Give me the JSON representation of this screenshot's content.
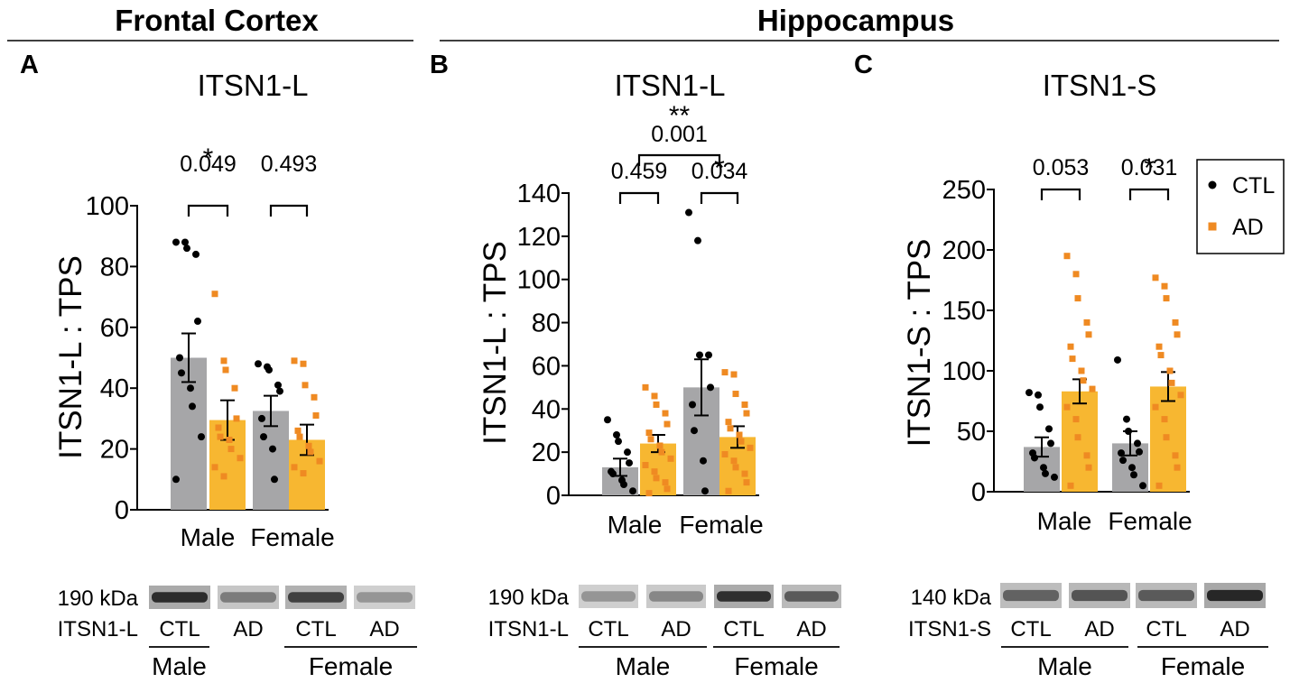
{
  "headers": {
    "frontal": "Frontal Cortex",
    "hippocampus": "Hippocampus"
  },
  "legend": {
    "ctl": "CTL",
    "ad": "AD"
  },
  "colors": {
    "ctl_bar": "#a6a6a8",
    "ad_bar": "#f7b731",
    "ctl_dot": "#000000",
    "ad_dot": "#ef8a22"
  },
  "chart_data": [
    {
      "id": "A",
      "panel_letter": "A",
      "type": "bar",
      "title": "ITSN1-L",
      "ylabel": "ITSN1-L : TPS",
      "ylim": [
        0,
        100
      ],
      "yticks": [
        "0",
        "20",
        "40",
        "60",
        "80",
        "100"
      ],
      "groups": [
        "Male",
        "Female"
      ],
      "series": [
        {
          "name": "CTL",
          "means": [
            50,
            32.5
          ],
          "sem": [
            8,
            5
          ],
          "points": [
            [
              88,
              88,
              86,
              84,
              62,
              50,
              45,
              40,
              34,
              24,
              10
            ],
            [
              48,
              47,
              46,
              41,
              39,
              30,
              24,
              20,
              10
            ]
          ]
        },
        {
          "name": "AD",
          "means": [
            29.5,
            23
          ],
          "sem": [
            6.5,
            5
          ],
          "points": [
            [
              71,
              49,
              46,
              40,
              30,
              27,
              24,
              23,
              20,
              17,
              14,
              11
            ],
            [
              49,
              48,
              41,
              37,
              31,
              26,
              24,
              21,
              19,
              16,
              14,
              12
            ]
          ]
        }
      ],
      "comparisons": [
        {
          "label": "0.049",
          "star": "*"
        },
        {
          "label": "0.493",
          "star": ""
        }
      ],
      "blot": {
        "kda": "190 kDa",
        "protein": "ITSN1-L",
        "lanes": [
          "CTL",
          "AD",
          "CTL",
          "AD"
        ],
        "intensity": [
          0.92,
          0.45,
          0.8,
          0.3
        ],
        "sexes": [
          "Male",
          "Female"
        ]
      }
    },
    {
      "id": "B",
      "panel_letter": "B",
      "type": "bar",
      "title": "ITSN1-L",
      "ylabel": "ITSN1-L : TPS",
      "ylim": [
        0,
        140
      ],
      "yticks": [
        "0",
        "20",
        "40",
        "60",
        "80",
        "100",
        "120",
        "140"
      ],
      "groups": [
        "Male",
        "Female"
      ],
      "series": [
        {
          "name": "CTL",
          "means": [
            13,
            50
          ],
          "sem": [
            4,
            13
          ],
          "points": [
            [
              35,
              28,
              25,
              20,
              15,
              11,
              10,
              7,
              5,
              2
            ],
            [
              131,
              118,
              65,
              65,
              50,
              42,
              30,
              16,
              2
            ]
          ]
        },
        {
          "name": "AD",
          "means": [
            24,
            27
          ],
          "sem": [
            4,
            5
          ],
          "points": [
            [
              50,
              46,
              42,
              38,
              33,
              29,
              26,
              23,
              20,
              17,
              14,
              11,
              8,
              6,
              3,
              1
            ],
            [
              57,
              56,
              47,
              42,
              38,
              34,
              31,
              28,
              25,
              22,
              19,
              16,
              13,
              10,
              6,
              2
            ]
          ]
        }
      ],
      "comparisons": [
        {
          "label": "0.459",
          "star": ""
        },
        {
          "label": "0.034",
          "star": "*"
        },
        {
          "label": "0.001",
          "star": "**"
        }
      ],
      "blot": {
        "kda": "190 kDa",
        "protein": "ITSN1-L",
        "lanes": [
          "CTL",
          "AD",
          "CTL",
          "AD"
        ],
        "intensity": [
          0.3,
          0.38,
          0.9,
          0.65
        ],
        "sexes": [
          "Male",
          "Female"
        ]
      }
    },
    {
      "id": "C",
      "panel_letter": "C",
      "type": "bar",
      "title": "ITSN1-S",
      "ylabel": "ITSN1-S : TPS",
      "ylim": [
        0,
        250
      ],
      "yticks": [
        "0",
        "50",
        "100",
        "150",
        "200",
        "250"
      ],
      "groups": [
        "Male",
        "Female"
      ],
      "series": [
        {
          "name": "CTL",
          "means": [
            37,
            40
          ],
          "sem": [
            8,
            10
          ],
          "points": [
            [
              82,
              80,
              70,
              52,
              40,
              32,
              28,
              20,
              15,
              12
            ],
            [
              109,
              60,
              50,
              40,
              33,
              32,
              26,
              20,
              14,
              5
            ]
          ]
        },
        {
          "name": "AD",
          "means": [
            83,
            87
          ],
          "sem": [
            10,
            12
          ],
          "points": [
            [
              195,
              180,
              160,
              140,
              130,
              120,
              110,
              100,
              92,
              85,
              70,
              60,
              45,
              30,
              20,
              5
            ],
            [
              177,
              170,
              160,
              140,
              130,
              120,
              113,
              100,
              90,
              80,
              70,
              60,
              45,
              30,
              20,
              5
            ]
          ]
        }
      ],
      "comparisons": [
        {
          "label": "0.053",
          "star": ""
        },
        {
          "label": "0.031",
          "star": "*"
        }
      ],
      "blot": {
        "kda": "140 kDa",
        "protein": "ITSN1-S",
        "lanes": [
          "CTL",
          "AD",
          "CTL",
          "AD"
        ],
        "intensity": [
          0.6,
          0.68,
          0.65,
          0.95
        ],
        "sexes": [
          "Male",
          "Female"
        ]
      }
    }
  ]
}
